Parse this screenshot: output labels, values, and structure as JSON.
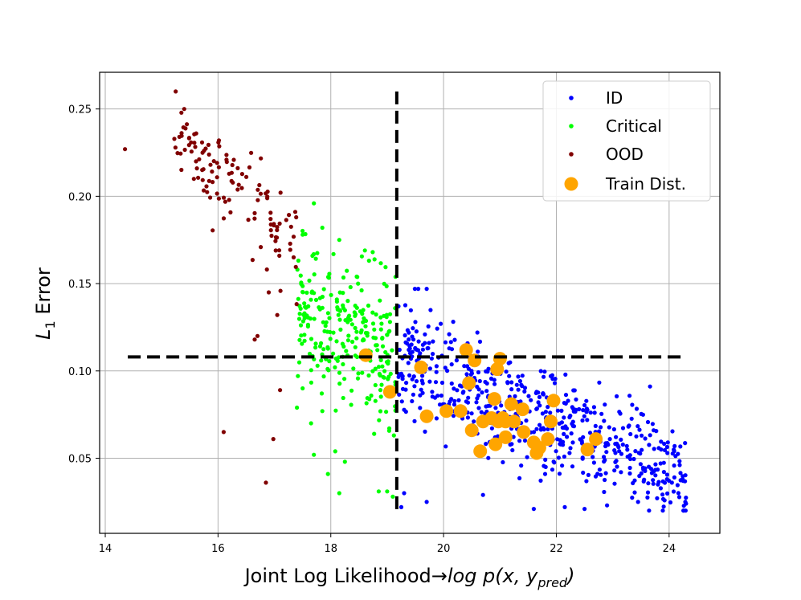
{
  "chart_data": {
    "type": "scatter",
    "xlabel": "Joint Log Likelihood → log p(x, y_pred)",
    "xlabel_parts": {
      "main": "Joint Log Likelihood",
      "arrow": "→",
      "fn": "log p(x, y",
      "sub": "pred",
      "close": ")"
    },
    "ylabel": "L1 Error",
    "ylabel_parts": {
      "main": "L",
      "sub": "1",
      "rest": " Error"
    },
    "xlim": [
      13.9,
      24.9
    ],
    "ylim": [
      0.007,
      0.271
    ],
    "xticks": [
      14,
      16,
      18,
      20,
      22,
      24
    ],
    "yticks": [
      0.05,
      0.1,
      0.15,
      0.2,
      0.25
    ],
    "xtick_labels": [
      "14",
      "16",
      "18",
      "20",
      "22",
      "24"
    ],
    "ytick_labels": [
      "0.05",
      "0.10",
      "0.15",
      "0.20",
      "0.25"
    ],
    "grid": true,
    "legend_position": "top-right",
    "thresholds": {
      "x": 19.17,
      "y": 0.108,
      "x_line_y_range": [
        0.02,
        0.26
      ],
      "y_line_x_range": [
        14.4,
        24.3
      ]
    },
    "series": [
      {
        "name": "ID",
        "color": "#0000ff",
        "marker": "small-dot",
        "generator": {
          "seed": 11,
          "count": 560,
          "x_range": [
            19.2,
            24.3
          ],
          "center_line": [
            [
              19.2,
              0.108
            ],
            [
              24.3,
              0.038
            ]
          ],
          "spread_y": 0.035,
          "y_min": 0.02,
          "y_max": 0.147
        },
        "points": [
          [
            19.2,
            0.137
          ],
          [
            19.5,
            0.128
          ],
          [
            19.7,
            0.147
          ],
          [
            19.95,
            0.127
          ],
          [
            20.1,
            0.121
          ],
          [
            20.6,
            0.122
          ],
          [
            19.3,
            0.03
          ],
          [
            19.7,
            0.025
          ],
          [
            19.25,
            0.022
          ],
          [
            20.7,
            0.029
          ],
          [
            21.6,
            0.021
          ],
          [
            22.15,
            0.022
          ],
          [
            22.5,
            0.021
          ],
          [
            22.9,
            0.023
          ],
          [
            23.45,
            0.025
          ],
          [
            24.05,
            0.036
          ],
          [
            24.3,
            0.024
          ],
          [
            23.85,
            0.047
          ],
          [
            23.25,
            0.057
          ],
          [
            22.7,
            0.058
          ],
          [
            22.95,
            0.061
          ],
          [
            21.9,
            0.097
          ],
          [
            21.65,
            0.088
          ],
          [
            21.3,
            0.092
          ]
        ]
      },
      {
        "name": "Critical",
        "color": "#00ff00",
        "marker": "small-dot",
        "generator": {
          "seed": 23,
          "count": 260,
          "x_range": [
            17.4,
            19.15
          ],
          "center_line": [
            [
              17.4,
              0.14
            ],
            [
              19.15,
              0.108
            ]
          ],
          "spread_y": 0.045,
          "y_min": 0.03,
          "y_max": 0.19
        },
        "points": [
          [
            17.7,
            0.196
          ],
          [
            17.5,
            0.178
          ],
          [
            17.85,
            0.182
          ],
          [
            18.15,
            0.175
          ],
          [
            17.65,
            0.07
          ],
          [
            17.7,
            0.052
          ],
          [
            17.95,
            0.041
          ],
          [
            18.15,
            0.03
          ],
          [
            18.85,
            0.031
          ],
          [
            19.0,
            0.031
          ],
          [
            19.1,
            0.028
          ],
          [
            17.5,
            0.09
          ],
          [
            17.4,
            0.079
          ],
          [
            17.85,
            0.077
          ],
          [
            18.25,
            0.048
          ]
        ]
      },
      {
        "name": "OOD",
        "color": "#800000",
        "marker": "small-dot",
        "generator": {
          "seed": 37,
          "count": 120,
          "x_range": [
            15.2,
            17.4
          ],
          "center_line": [
            [
              15.2,
              0.235
            ],
            [
              17.4,
              0.17
            ]
          ],
          "spread_y": 0.03,
          "y_min": 0.09,
          "y_max": 0.26
        },
        "points": [
          [
            14.35,
            0.227
          ],
          [
            15.25,
            0.26
          ],
          [
            15.4,
            0.25
          ],
          [
            16.1,
            0.065
          ],
          [
            16.85,
            0.036
          ],
          [
            16.98,
            0.061
          ],
          [
            16.65,
            0.118
          ],
          [
            17.1,
            0.089
          ],
          [
            17.05,
            0.132
          ],
          [
            16.9,
            0.145
          ],
          [
            16.7,
            0.12
          ]
        ]
      },
      {
        "name": "Train Dist.",
        "color": "#ffa500",
        "marker": "large-dot",
        "points": [
          [
            18.62,
            0.109
          ],
          [
            19.05,
            0.088
          ],
          [
            19.6,
            0.102
          ],
          [
            19.7,
            0.074
          ],
          [
            20.05,
            0.077
          ],
          [
            20.3,
            0.077
          ],
          [
            20.4,
            0.112
          ],
          [
            20.45,
            0.093
          ],
          [
            20.5,
            0.066
          ],
          [
            20.55,
            0.106
          ],
          [
            20.65,
            0.054
          ],
          [
            20.7,
            0.071
          ],
          [
            20.85,
            0.073
          ],
          [
            20.9,
            0.084
          ],
          [
            20.92,
            0.058
          ],
          [
            20.95,
            0.101
          ],
          [
            20.97,
            0.071
          ],
          [
            21.0,
            0.107
          ],
          [
            21.05,
            0.073
          ],
          [
            21.1,
            0.062
          ],
          [
            21.1,
            0.071
          ],
          [
            21.2,
            0.081
          ],
          [
            21.25,
            0.071
          ],
          [
            21.4,
            0.078
          ],
          [
            21.42,
            0.065
          ],
          [
            21.6,
            0.059
          ],
          [
            21.65,
            0.053
          ],
          [
            21.7,
            0.056
          ],
          [
            21.85,
            0.061
          ],
          [
            21.9,
            0.071
          ],
          [
            21.95,
            0.083
          ],
          [
            22.55,
            0.055
          ],
          [
            22.7,
            0.061
          ]
        ]
      }
    ]
  }
}
